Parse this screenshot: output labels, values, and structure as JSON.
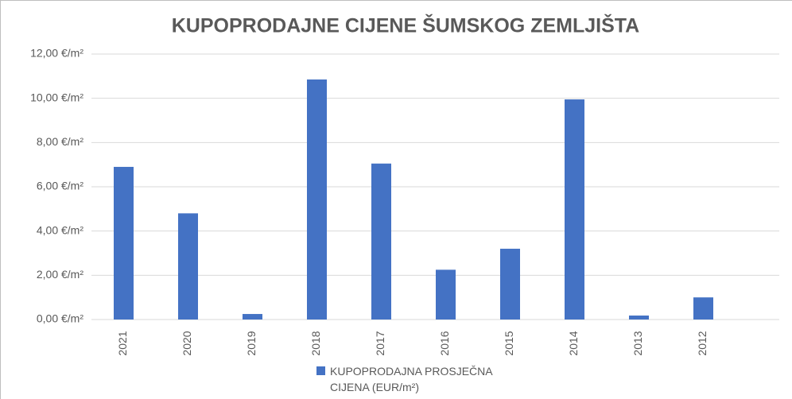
{
  "chart_data": {
    "type": "bar",
    "title": "KUPOPRODAJNE CIJENE ŠUMSKOG ZEMLJIŠTA",
    "categories": [
      "2021",
      "2020",
      "2019",
      "2018",
      "2017",
      "2016",
      "2015",
      "2014",
      "2013",
      "2012"
    ],
    "series": [
      {
        "name": "KUPOPRODAJNA PROSJEČNA CIJENA (EUR/m²)",
        "color": "#4472c4",
        "values": [
          6.9,
          4.8,
          0.25,
          10.85,
          7.05,
          2.25,
          3.2,
          9.95,
          0.18,
          1.0
        ]
      }
    ],
    "ylim": [
      0,
      12
    ],
    "yticks": [
      {
        "value": 0,
        "label": "0,00 €/m²"
      },
      {
        "value": 2,
        "label": "2,00 €/m²"
      },
      {
        "value": 4,
        "label": "4,00 €/m²"
      },
      {
        "value": 6,
        "label": "6,00 €/m²"
      },
      {
        "value": 8,
        "label": "8,00 €/m²"
      },
      {
        "value": 10,
        "label": "10,00 €/m²"
      },
      {
        "value": 12,
        "label": "12,00 €/m²"
      }
    ],
    "grid": true,
    "legend": "bottom"
  }
}
